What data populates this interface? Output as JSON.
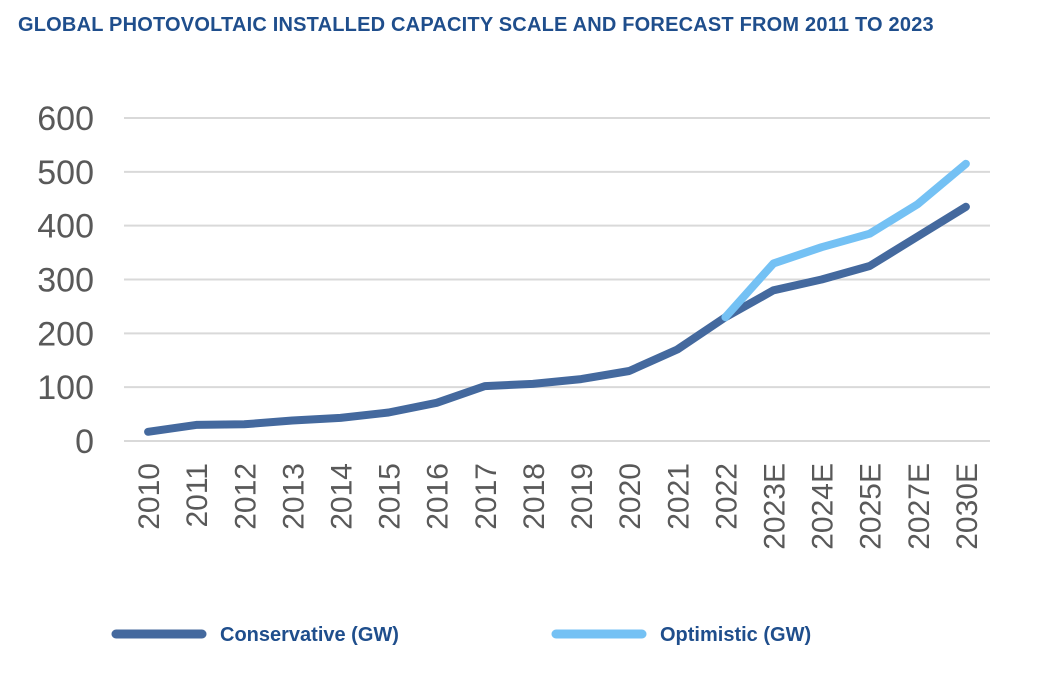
{
  "chart_data": {
    "type": "line",
    "title": "GLOBAL PHOTOVOLTAIC INSTALLED CAPACITY SCALE AND FORECAST FROM 2011 TO 2023",
    "xlabel": "",
    "ylabel": "",
    "ylim": [
      0,
      600
    ],
    "yticks": [
      "0",
      "100",
      "200",
      "300",
      "400",
      "500",
      "600"
    ],
    "categories": [
      "2010",
      "2011",
      "2012",
      "2013",
      "2014",
      "2015",
      "2016",
      "2017",
      "2018",
      "2019",
      "2020",
      "2021",
      "2022",
      "2023E",
      "2024E",
      "2025E",
      "2027E",
      "2030E"
    ],
    "grid": true,
    "legend_position": "bottom",
    "series": [
      {
        "name": "Conservative (GW)",
        "color": "#44699e",
        "values": [
          17,
          30,
          31,
          38,
          43,
          53,
          71,
          102,
          106,
          115,
          130,
          170,
          230,
          280,
          300,
          325,
          380,
          435
        ]
      },
      {
        "name": "Optimistic (GW)",
        "color": "#74c1f4",
        "values": [
          null,
          null,
          null,
          null,
          null,
          null,
          null,
          null,
          null,
          null,
          null,
          null,
          230,
          330,
          360,
          385,
          440,
          515
        ]
      }
    ]
  }
}
